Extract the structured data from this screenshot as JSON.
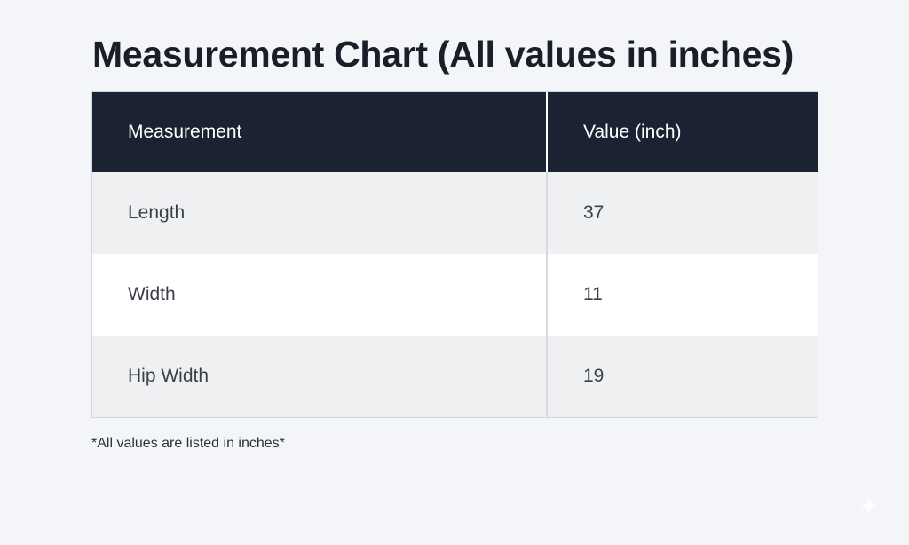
{
  "title": "Measurement Chart (All values in inches)",
  "table": {
    "headers": [
      "Measurement",
      "Value (inch)"
    ],
    "rows": [
      {
        "measurement": "Length",
        "value": "37"
      },
      {
        "measurement": "Width",
        "value": "11"
      },
      {
        "measurement": "Hip Width",
        "value": "19"
      }
    ]
  },
  "footnote": "*All values are listed in inches*",
  "colors": {
    "header_background": "#1b2231",
    "header_text": "#ffffff",
    "row_shaded": "#eff0f2",
    "row_plain": "#ffffff",
    "page_background": "#f4f5f8"
  },
  "icons": {
    "corner": "sparkle-icon"
  }
}
